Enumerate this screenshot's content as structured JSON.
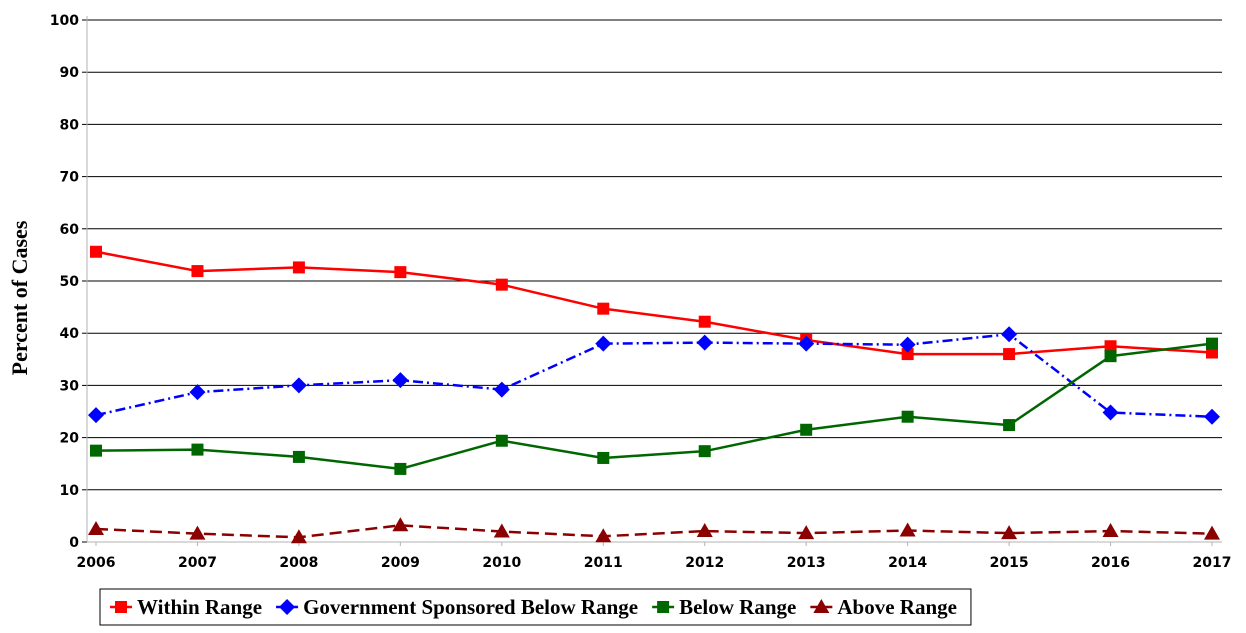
{
  "chart_data": {
    "type": "line",
    "title": "",
    "xlabel": "",
    "ylabel": "Percent of Cases",
    "ylim": [
      0,
      100
    ],
    "yticks": [
      "0",
      "10",
      "20",
      "30",
      "40",
      "50",
      "60",
      "70",
      "80",
      "90",
      "100"
    ],
    "categories": [
      "2006",
      "2007",
      "2008",
      "2009",
      "2010",
      "2011",
      "2012",
      "2013",
      "2014",
      "2015",
      "2016",
      "2017"
    ],
    "grid": "horizontal",
    "legend_position": "bottom",
    "series": [
      {
        "name": "Within Range",
        "color": "#ff0000",
        "marker": "square",
        "line_style": "solid",
        "values": [
          55.6,
          51.9,
          52.6,
          51.7,
          49.3,
          44.7,
          42.2,
          38.7,
          36.0,
          36.0,
          37.5,
          36.3
        ]
      },
      {
        "name": "Government Sponsored Below Range",
        "color": "#0000ff",
        "marker": "diamond",
        "line_style": "dash-dot",
        "values": [
          24.3,
          28.7,
          30.0,
          31.0,
          29.2,
          38.0,
          38.2,
          38.0,
          37.8,
          39.8,
          24.8,
          24.0
        ]
      },
      {
        "name": "Below Range",
        "color": "#006600",
        "marker": "square",
        "line_style": "solid",
        "values": [
          17.5,
          17.7,
          16.3,
          14.0,
          19.4,
          16.1,
          17.4,
          21.5,
          24.0,
          22.4,
          35.6,
          38.0
        ]
      },
      {
        "name": "Above Range",
        "color": "#8b0000",
        "marker": "triangle",
        "line_style": "dashed",
        "values": [
          2.5,
          1.6,
          0.9,
          3.2,
          2.0,
          1.1,
          2.1,
          1.7,
          2.2,
          1.7,
          2.1,
          1.6
        ]
      }
    ]
  }
}
